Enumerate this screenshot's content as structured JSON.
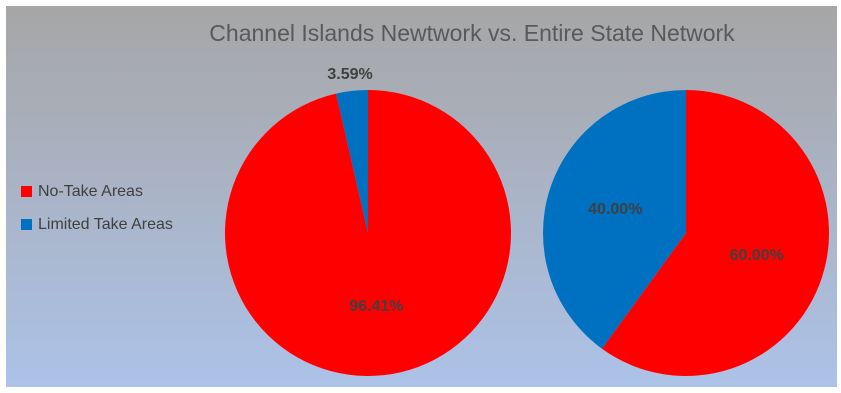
{
  "chart_data": {
    "type": "pie",
    "title": "Channel Islands Newtwork vs. Entire State Network",
    "legend": {
      "position": "left",
      "entries": [
        {
          "label": "No-Take Areas",
          "color": "#ff0000"
        },
        {
          "label": "Limited Take Areas",
          "color": "#0070c0"
        }
      ]
    },
    "pies": [
      {
        "slices": [
          {
            "category": "No-Take Areas",
            "value": 96.41,
            "label": "96.41%",
            "color": "#ff0000"
          },
          {
            "category": "Limited Take Areas",
            "value": 3.59,
            "label": "3.59%",
            "color": "#0070c0"
          }
        ]
      },
      {
        "slices": [
          {
            "category": "No-Take Areas",
            "value": 60.0,
            "label": "60.00%",
            "color": "#ff0000"
          },
          {
            "category": "Limited Take Areas",
            "value": 40.0,
            "label": "40.00%",
            "color": "#0070c0"
          }
        ]
      }
    ]
  }
}
